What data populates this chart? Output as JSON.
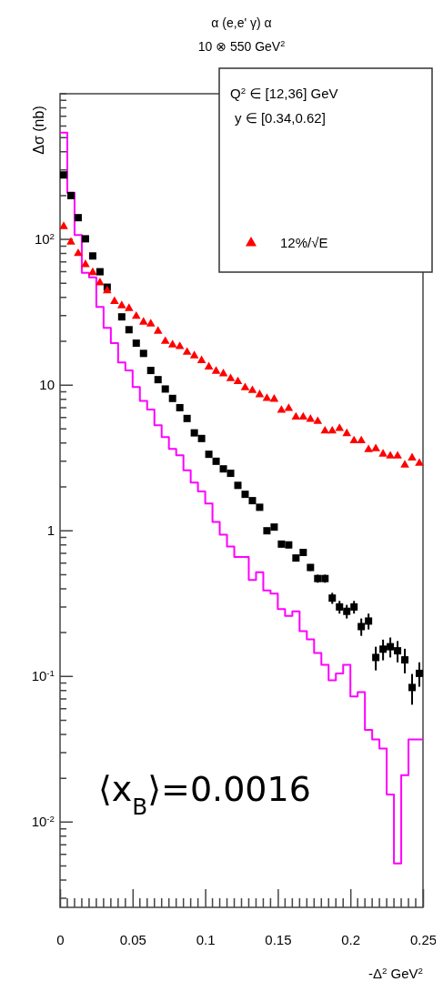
{
  "chart_data": {
    "type": "scatter",
    "title": "α (e,e' γ) α",
    "subtitle": "10 ⊗ 550 GeV$^{2}$",
    "xlabel": "-Δ$^{2}$ GeV$^{2}$",
    "ylabel": "Δσ (nb)",
    "annotations": [
      "Q$^{2}$ ∈ [12,36] GeV",
      "y ∈ [0.34,0.62]",
      "⟨x$_{B}$⟩=0.0016"
    ],
    "x": [
      0.0025,
      0.0075,
      0.0125,
      0.0175,
      0.0225,
      0.0275,
      0.0325,
      0.0375,
      0.0425,
      0.0475,
      0.0525,
      0.0575,
      0.0625,
      0.0675,
      0.0725,
      0.0775,
      0.0825,
      0.0875,
      0.0925,
      0.0975,
      0.1025,
      0.1075,
      0.1125,
      0.1175,
      0.1225,
      0.1275,
      0.1325,
      0.1375,
      0.1425,
      0.1475,
      0.1525,
      0.1575,
      0.1625,
      0.1675,
      0.1725,
      0.1775,
      0.1825,
      0.1875,
      0.1925,
      0.1975,
      0.2025,
      0.2075,
      0.2125,
      0.2175,
      0.2225,
      0.2275,
      0.2325,
      0.2375,
      0.2425,
      0.2475
    ],
    "series": [
      {
        "type": "step",
        "color": "#ff00ff",
        "values": [
          540,
          209,
          107,
          59,
          55,
          34.4,
          24.7,
          19.4,
          14.3,
          12.6,
          9.7,
          7.8,
          6.8,
          5.3,
          4.4,
          3.65,
          3.3,
          2.6,
          2.14,
          1.86,
          1.54,
          1.15,
          0.94,
          0.78,
          0.66,
          0.66,
          0.46,
          0.52,
          0.39,
          0.37,
          0.29,
          0.26,
          0.28,
          0.205,
          0.18,
          0.145,
          0.12,
          0.094,
          0.105,
          0.12,
          0.073,
          0.078,
          0.043,
          0.037,
          0.032,
          0.0155,
          0.0052,
          0.021,
          0.037,
          0.037
        ]
      },
      {
        "type": "scatter",
        "marker": "square",
        "color": "#000000",
        "values": [
          277,
          200,
          141,
          101,
          77,
          60,
          47,
          null,
          29.4,
          24,
          19.4,
          16.5,
          12.6,
          10.9,
          9.4,
          8.1,
          7.0,
          5.9,
          4.7,
          4.3,
          3.35,
          3.0,
          2.66,
          2.48,
          2.05,
          1.78,
          1.61,
          1.45,
          1.0,
          1.06,
          0.81,
          0.8,
          0.65,
          0.71,
          0.56,
          0.47,
          0.47,
          0.345,
          0.3,
          0.28,
          0.3,
          0.22,
          0.24,
          0.135,
          0.154,
          0.16,
          0.15,
          0.13,
          0.084,
          0.105
        ],
        "errors": [
          null,
          null,
          null,
          null,
          null,
          null,
          null,
          null,
          null,
          null,
          null,
          null,
          null,
          null,
          null,
          null,
          null,
          null,
          null,
          null,
          null,
          null,
          null,
          null,
          null,
          null,
          null,
          null,
          0.05,
          0.05,
          0.04,
          0.04,
          0.035,
          0.035,
          0.03,
          0.03,
          0.03,
          0.03,
          0.03,
          0.03,
          0.03,
          0.03,
          0.03,
          0.025,
          0.025,
          0.025,
          0.025,
          0.025,
          0.02,
          0.02
        ]
      },
      {
        "type": "scatter",
        "marker": "triangle",
        "color": "#ff0000",
        "name": "12%/√E",
        "values": [
          124,
          97,
          81,
          68,
          60,
          51,
          45,
          38,
          35.5,
          34,
          30,
          27.4,
          26.6,
          23.7,
          20.2,
          19.1,
          18.6,
          17,
          16.1,
          14.9,
          13.5,
          12.6,
          12.1,
          11.2,
          10.7,
          9.7,
          9.3,
          8.7,
          8.2,
          8.1,
          6.8,
          7.0,
          6.1,
          6.1,
          5.9,
          5.7,
          4.9,
          4.9,
          5.1,
          4.7,
          4.2,
          4.2,
          3.65,
          3.7,
          3.4,
          3.3,
          3.3,
          2.86,
          3.2,
          2.94
        ]
      }
    ],
    "log": "y",
    "xlim": [
      0,
      0.25
    ],
    "xticks": [
      0,
      0.05,
      0.1,
      0.15,
      0.2,
      0.25
    ],
    "ylim": [
      0.0026,
      1000
    ],
    "yticks": [
      {
        "value": 0.01,
        "label": "10$^{-2}$"
      },
      {
        "value": 0.1,
        "label": "10$^{-1}$"
      },
      1,
      10,
      {
        "value": 100,
        "label": "10$^{2}$"
      }
    ],
    "legend": "top right",
    "grid": false
  }
}
